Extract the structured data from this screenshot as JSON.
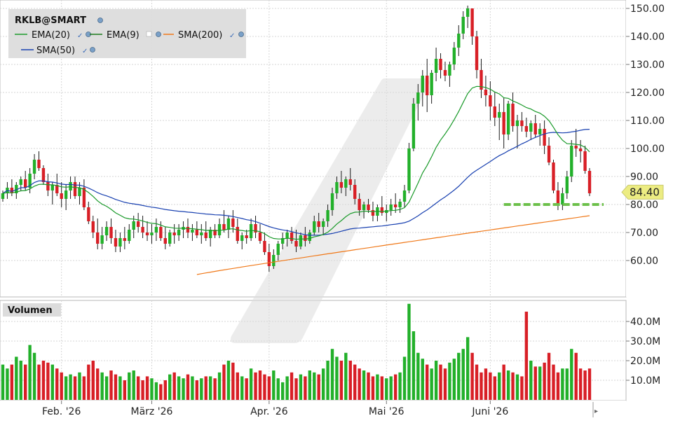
{
  "chart_data": {
    "type": "candlestick",
    "symbol": "RKLB@SMART",
    "legend": [
      {
        "name": "EMA(20)",
        "color": "#1a9a2a"
      },
      {
        "name": "EMA(9)",
        "color": "#1a7a1a"
      },
      {
        "name": "SMA(200)",
        "color": "#f07818"
      },
      {
        "name": "SMA(50)",
        "color": "#1840b0"
      }
    ],
    "price_axis": {
      "min": 48,
      "max": 152,
      "ticks": [
        "150.00",
        "140.00",
        "130.00",
        "120.00",
        "110.00",
        "100.00",
        "90.00",
        "80.00",
        "70.00",
        "60.00"
      ]
    },
    "last_price": "84.40",
    "support_level": 80.0,
    "volume_panel": {
      "label": "Volumen",
      "max": 50,
      "ticks": [
        "40.0M",
        "30.0M",
        "20.0M",
        "10.0M"
      ]
    },
    "x_axis_labels": [
      "Feb. '26",
      "März '26",
      "Apr. '26",
      "Mai '26",
      "Juni '26"
    ],
    "candles": [
      [
        82,
        85,
        81,
        84,
        18
      ],
      [
        84,
        88,
        82,
        86,
        16
      ],
      [
        86,
        89,
        83,
        84,
        18
      ],
      [
        84,
        88,
        82,
        87,
        22
      ],
      [
        87,
        90,
        85,
        89,
        20
      ],
      [
        89,
        92,
        85,
        86,
        18
      ],
      [
        86,
        93,
        84,
        91,
        28
      ],
      [
        91,
        98,
        89,
        96,
        24
      ],
      [
        96,
        99,
        92,
        93,
        18
      ],
      [
        93,
        94,
        87,
        88,
        20
      ],
      [
        88,
        91,
        83,
        85,
        19
      ],
      [
        85,
        88,
        80,
        87,
        18
      ],
      [
        87,
        91,
        83,
        84,
        16
      ],
      [
        84,
        88,
        79,
        82,
        14
      ],
      [
        82,
        87,
        78,
        85,
        12
      ],
      [
        85,
        90,
        82,
        88,
        13
      ],
      [
        88,
        90,
        82,
        83,
        12
      ],
      [
        83,
        88,
        80,
        86,
        14
      ],
      [
        86,
        89,
        78,
        79,
        12
      ],
      [
        79,
        81,
        73,
        74,
        18
      ],
      [
        74,
        76,
        68,
        70,
        20
      ],
      [
        70,
        75,
        64,
        66,
        16
      ],
      [
        66,
        72,
        64,
        69,
        14
      ],
      [
        69,
        74,
        67,
        72,
        12
      ],
      [
        72,
        75,
        66,
        68,
        15
      ],
      [
        68,
        71,
        63,
        65,
        13
      ],
      [
        65,
        70,
        63,
        68,
        12
      ],
      [
        68,
        72,
        64,
        67,
        10
      ],
      [
        67,
        73,
        66,
        71,
        14
      ],
      [
        71,
        76,
        68,
        74,
        15
      ],
      [
        74,
        77,
        70,
        72,
        12
      ],
      [
        72,
        76,
        68,
        70,
        10
      ],
      [
        70,
        74,
        67,
        69,
        12
      ],
      [
        69,
        73,
        66,
        70,
        11
      ],
      [
        70,
        75,
        67,
        72,
        9
      ],
      [
        72,
        74,
        67,
        68,
        8
      ],
      [
        68,
        72,
        64,
        66,
        10
      ],
      [
        66,
        71,
        65,
        70,
        13
      ],
      [
        70,
        73,
        66,
        69,
        14
      ],
      [
        69,
        73,
        67,
        71,
        12
      ],
      [
        71,
        74,
        68,
        72,
        11
      ],
      [
        72,
        75,
        68,
        70,
        13
      ],
      [
        70,
        73,
        67,
        71,
        12
      ],
      [
        71,
        74,
        68,
        69,
        10
      ],
      [
        69,
        73,
        66,
        70,
        11
      ],
      [
        70,
        74,
        67,
        68,
        12
      ],
      [
        68,
        72,
        65,
        71,
        12
      ],
      [
        71,
        73,
        68,
        69,
        11
      ],
      [
        69,
        75,
        68,
        73,
        14
      ],
      [
        73,
        78,
        70,
        71,
        18
      ],
      [
        71,
        76,
        68,
        75,
        20
      ],
      [
        75,
        78,
        70,
        72,
        19
      ],
      [
        72,
        75,
        66,
        67,
        14
      ],
      [
        67,
        70,
        64,
        69,
        12
      ],
      [
        69,
        71,
        66,
        68,
        11
      ],
      [
        68,
        75,
        67,
        73,
        16
      ],
      [
        73,
        76,
        68,
        70,
        14
      ],
      [
        70,
        73,
        66,
        67,
        15
      ],
      [
        67,
        70,
        62,
        63,
        13
      ],
      [
        63,
        66,
        56,
        58,
        12
      ],
      [
        58,
        64,
        57,
        62,
        15
      ],
      [
        62,
        67,
        60,
        66,
        11
      ],
      [
        66,
        70,
        64,
        68,
        9
      ],
      [
        68,
        71,
        65,
        70,
        12
      ],
      [
        70,
        72,
        66,
        67,
        14
      ],
      [
        67,
        71,
        63,
        65,
        11
      ],
      [
        65,
        70,
        64,
        69,
        13
      ],
      [
        69,
        72,
        65,
        67,
        12
      ],
      [
        67,
        71,
        66,
        70,
        15
      ],
      [
        70,
        76,
        69,
        74,
        14
      ],
      [
        74,
        77,
        70,
        72,
        13
      ],
      [
        72,
        75,
        69,
        74,
        16
      ],
      [
        74,
        80,
        72,
        78,
        20
      ],
      [
        78,
        86,
        76,
        84,
        26
      ],
      [
        84,
        90,
        82,
        88,
        22
      ],
      [
        88,
        92,
        84,
        86,
        20
      ],
      [
        86,
        90,
        83,
        89,
        24
      ],
      [
        89,
        93,
        85,
        87,
        20
      ],
      [
        87,
        89,
        80,
        82,
        18
      ],
      [
        82,
        84,
        76,
        78,
        16
      ],
      [
        78,
        81,
        75,
        80,
        15
      ],
      [
        80,
        82,
        77,
        78,
        14
      ],
      [
        78,
        81,
        74,
        76,
        12
      ],
      [
        76,
        80,
        74,
        79,
        13
      ],
      [
        79,
        83,
        76,
        77,
        12
      ],
      [
        77,
        80,
        74,
        78,
        11
      ],
      [
        78,
        82,
        76,
        80,
        12
      ],
      [
        80,
        84,
        77,
        79,
        13
      ],
      [
        79,
        82,
        77,
        81,
        14
      ],
      [
        81,
        87,
        79,
        85,
        22
      ],
      [
        85,
        102,
        84,
        100,
        49
      ],
      [
        100,
        118,
        99,
        116,
        35
      ],
      [
        116,
        123,
        110,
        120,
        24
      ],
      [
        120,
        128,
        115,
        126,
        21
      ],
      [
        126,
        132,
        113,
        119,
        18
      ],
      [
        119,
        128,
        116,
        127,
        16
      ],
      [
        127,
        136,
        124,
        132,
        20
      ],
      [
        132,
        134,
        125,
        128,
        18
      ],
      [
        128,
        131,
        124,
        126,
        16
      ],
      [
        126,
        131,
        122,
        130,
        19
      ],
      [
        130,
        138,
        128,
        136,
        21
      ],
      [
        136,
        144,
        133,
        141,
        24
      ],
      [
        141,
        149,
        139,
        147,
        26
      ],
      [
        147,
        151,
        143,
        150,
        32
      ],
      [
        150,
        150,
        137,
        140,
        24
      ],
      [
        140,
        142,
        125,
        128,
        18
      ],
      [
        128,
        132,
        118,
        121,
        14
      ],
      [
        121,
        126,
        115,
        119,
        16
      ],
      [
        119,
        124,
        110,
        115,
        14
      ],
      [
        115,
        120,
        108,
        111,
        12
      ],
      [
        111,
        116,
        103,
        113,
        14
      ],
      [
        113,
        118,
        100,
        105,
        18
      ],
      [
        105,
        117,
        103,
        116,
        15
      ],
      [
        116,
        120,
        106,
        108,
        14
      ],
      [
        108,
        112,
        100,
        110,
        13
      ],
      [
        110,
        113,
        106,
        108,
        12
      ],
      [
        108,
        111,
        104,
        106,
        45
      ],
      [
        106,
        110,
        103,
        109,
        20
      ],
      [
        109,
        112,
        104,
        105,
        17
      ],
      [
        105,
        109,
        101,
        107,
        17
      ],
      [
        107,
        110,
        98,
        101,
        19
      ],
      [
        101,
        104,
        94,
        95,
        24
      ],
      [
        95,
        96,
        84,
        85,
        18
      ],
      [
        85,
        88,
        78,
        80,
        14
      ],
      [
        80,
        86,
        78,
        84,
        16
      ],
      [
        84,
        92,
        82,
        90,
        16
      ],
      [
        90,
        103,
        88,
        101,
        26
      ],
      [
        101,
        107,
        97,
        100,
        24
      ],
      [
        100,
        103,
        95,
        99,
        16
      ],
      [
        99,
        101,
        91,
        92,
        15
      ],
      [
        92,
        93,
        83,
        84,
        16
      ]
    ]
  }
}
